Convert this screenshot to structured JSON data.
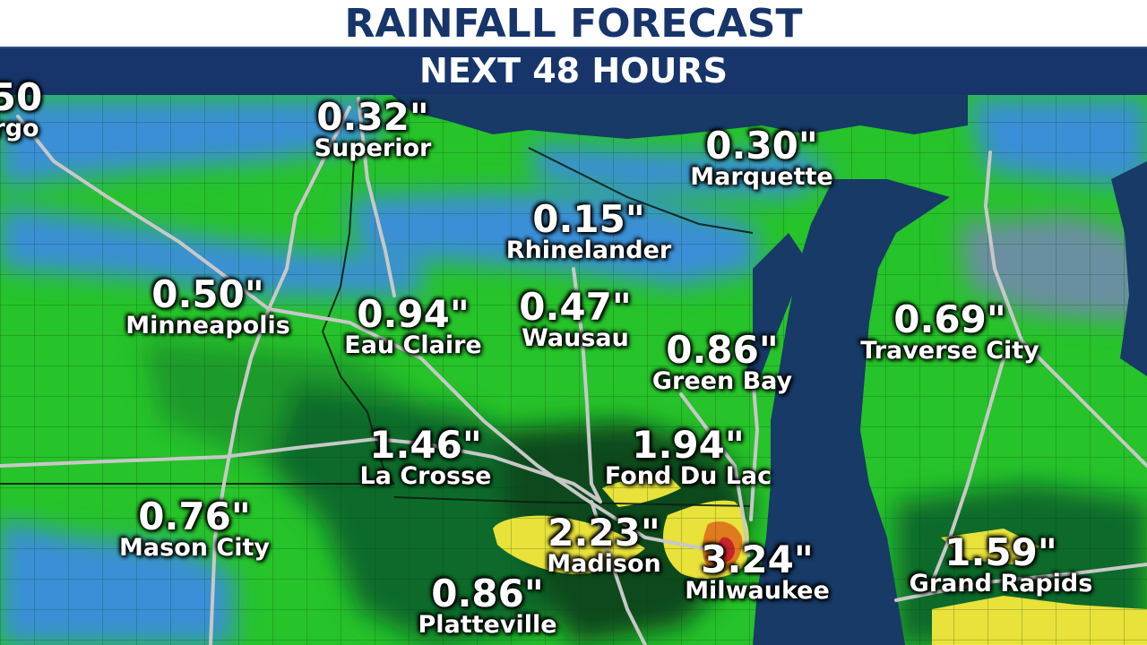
{
  "header": {
    "title": "RAINFALL FORECAST",
    "subtitle": "NEXT 48 HOURS"
  },
  "colors": {
    "light_green": "#2ed12a",
    "mid_green": "#1fae2a",
    "dark_green": "#12702a",
    "deep_green": "#0b4a1f",
    "blue": "#3a8fd6",
    "yellow": "#e8e23a",
    "orange": "#e07a1e",
    "red": "#c8242a",
    "lake": "#173a66",
    "header_blue": "#17356a"
  },
  "cities": [
    {
      "id": "fargo",
      "amount": "50",
      "name": "rgo"
    },
    {
      "id": "superior",
      "amount": "0.32\"",
      "name": "Superior"
    },
    {
      "id": "marquette",
      "amount": "0.30\"",
      "name": "Marquette"
    },
    {
      "id": "rhinelander",
      "amount": "0.15\"",
      "name": "Rhinelander"
    },
    {
      "id": "minneapolis",
      "amount": "0.50\"",
      "name": "Minneapolis"
    },
    {
      "id": "eau-claire",
      "amount": "0.94\"",
      "name": "Eau Claire"
    },
    {
      "id": "wausau",
      "amount": "0.47\"",
      "name": "Wausau"
    },
    {
      "id": "green-bay",
      "amount": "0.86\"",
      "name": "Green Bay"
    },
    {
      "id": "traverse-city",
      "amount": "0.69\"",
      "name": "Traverse City"
    },
    {
      "id": "la-crosse",
      "amount": "1.46\"",
      "name": "La Crosse"
    },
    {
      "id": "fond-du-lac",
      "amount": "1.94\"",
      "name": "Fond Du Lac"
    },
    {
      "id": "mason-city",
      "amount": "0.76\"",
      "name": "Mason City"
    },
    {
      "id": "madison",
      "amount": "2.23\"",
      "name": "Madison"
    },
    {
      "id": "milwaukee",
      "amount": "3.24\"",
      "name": "Milwaukee"
    },
    {
      "id": "grand-rapids",
      "amount": "1.59\"",
      "name": "Grand Rapids"
    },
    {
      "id": "platteville",
      "amount": "0.86\"",
      "name": "Platteville"
    }
  ]
}
